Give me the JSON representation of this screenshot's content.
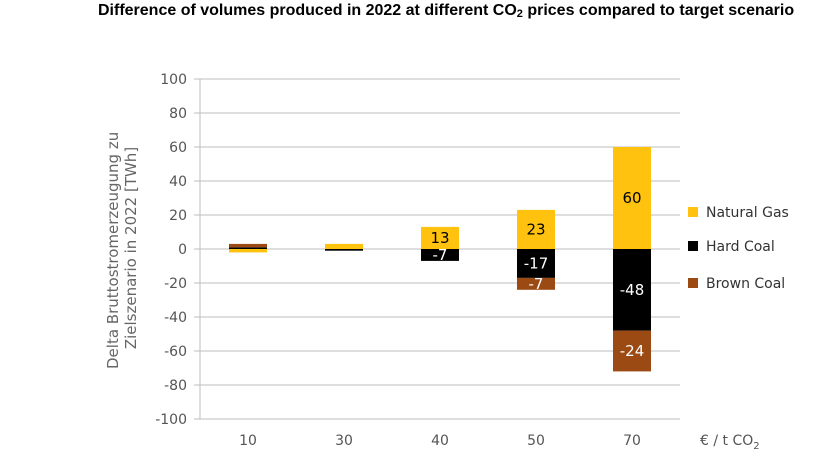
{
  "chart_data": {
    "type": "bar",
    "stacked": true,
    "title_main": "Difference of volumes produced in 2022 at different CO",
    "title_sub": "2",
    "title_end": " prices compared to target scenario",
    "ylabel_line1": "Delta Bruttostromerzeugung zu",
    "ylabel_line2": "Zielszenario in 2022 [TWh]",
    "x_unit_prefix": "€ / t CO",
    "x_unit_sub": "2",
    "categories": [
      "10",
      "30",
      "40",
      "50",
      "70"
    ],
    "ylim": [
      -100,
      100
    ],
    "yticks": [
      "100",
      "80",
      "60",
      "40",
      "20",
      "0",
      "-20",
      "-40",
      "-60",
      "-80",
      "-100"
    ],
    "legend_position": "right",
    "series": [
      {
        "name": "Natural Gas",
        "color": "#FFC20E",
        "values": [
          -2,
          3,
          13,
          23,
          60
        ],
        "labels": [
          "",
          "",
          "13",
          "23",
          "60"
        ]
      },
      {
        "name": "Hard Coal",
        "color": "#000000",
        "values": [
          1,
          -1,
          -7,
          -17,
          -48
        ],
        "labels": [
          "",
          "",
          "-7",
          "-17",
          "-48"
        ]
      },
      {
        "name": "Brown Coal",
        "color": "#9C4A13",
        "values": [
          2,
          0,
          0,
          -7,
          -24
        ],
        "labels": [
          "",
          "",
          "",
          "-7",
          "-24"
        ]
      }
    ]
  }
}
